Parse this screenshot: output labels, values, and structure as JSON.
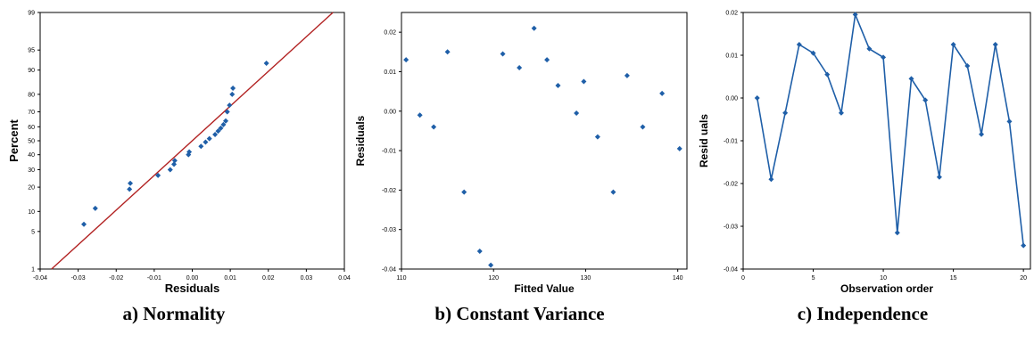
{
  "chart_data": [
    {
      "type": "scatter",
      "panel_id": "normality",
      "caption": "a) Normality",
      "xlabel": "Residuals",
      "ylabel": "Percent",
      "xlim": [
        -0.04,
        0.04
      ],
      "x_ticks": [
        "-0.04",
        "-0.03",
        "-0.02",
        "-0.01",
        "0.00",
        "0.01",
        "0.02",
        "0.03",
        "0.04"
      ],
      "y_ticks": [
        "1",
        "5",
        "10",
        "20",
        "30",
        "40",
        "50",
        "60",
        "70",
        "80",
        "90",
        "95",
        "99"
      ],
      "y_scale": "normal-probability",
      "grid": false,
      "marker_color": "#1f5fa8",
      "line_color": "#b22222",
      "fit_line": {
        "x": [
          -0.037,
          0.037
        ],
        "y": [
          1,
          99
        ]
      },
      "points": [
        {
          "x": -0.0285,
          "y": 6.5
        },
        {
          "x": -0.0255,
          "y": 11
        },
        {
          "x": -0.0165,
          "y": 19
        },
        {
          "x": -0.0163,
          "y": 22
        },
        {
          "x": -0.009,
          "y": 26.5
        },
        {
          "x": -0.0058,
          "y": 30
        },
        {
          "x": -0.0048,
          "y": 33.5
        },
        {
          "x": -0.0046,
          "y": 36
        },
        {
          "x": -0.001,
          "y": 40
        },
        {
          "x": -0.0008,
          "y": 42
        },
        {
          "x": 0.0023,
          "y": 46
        },
        {
          "x": 0.0035,
          "y": 49
        },
        {
          "x": 0.0045,
          "y": 51.5
        },
        {
          "x": 0.006,
          "y": 54.5
        },
        {
          "x": 0.0068,
          "y": 57
        },
        {
          "x": 0.0075,
          "y": 59
        },
        {
          "x": 0.0082,
          "y": 61.5
        },
        {
          "x": 0.0088,
          "y": 64
        },
        {
          "x": 0.0092,
          "y": 70
        },
        {
          "x": 0.0098,
          "y": 74
        },
        {
          "x": 0.0105,
          "y": 80
        },
        {
          "x": 0.0107,
          "y": 83
        },
        {
          "x": 0.0195,
          "y": 92
        }
      ]
    },
    {
      "type": "scatter",
      "panel_id": "constant-variance",
      "caption": "b) Constant Variance",
      "xlabel": "Fitted Value",
      "ylabel": "Residuals",
      "xlim": [
        110,
        141
      ],
      "ylim": [
        -0.04,
        0.025
      ],
      "x_ticks": [
        "110",
        "120",
        "130",
        "140"
      ],
      "x_tick_values": [
        110,
        120,
        130,
        140
      ],
      "y_ticks": [
        "0.02",
        "0.01",
        "0.00",
        "-0.01",
        "-0.02",
        "-0.03",
        "-0.04"
      ],
      "y_tick_values": [
        0.02,
        0.01,
        0.0,
        -0.01,
        -0.02,
        -0.03,
        -0.04
      ],
      "grid": false,
      "marker_color": "#1f5fa8",
      "points": [
        {
          "x": 110.5,
          "y": 0.013
        },
        {
          "x": 112.0,
          "y": -0.001
        },
        {
          "x": 113.5,
          "y": -0.004
        },
        {
          "x": 115.0,
          "y": 0.015
        },
        {
          "x": 116.8,
          "y": -0.0205
        },
        {
          "x": 118.5,
          "y": -0.0355
        },
        {
          "x": 119.7,
          "y": -0.039
        },
        {
          "x": 121.0,
          "y": 0.0145
        },
        {
          "x": 122.8,
          "y": 0.011
        },
        {
          "x": 124.4,
          "y": 0.021
        },
        {
          "x": 125.8,
          "y": 0.013
        },
        {
          "x": 127.0,
          "y": 0.0065
        },
        {
          "x": 129.0,
          "y": -0.0005
        },
        {
          "x": 129.8,
          "y": 0.0075
        },
        {
          "x": 131.3,
          "y": -0.0065
        },
        {
          "x": 133.0,
          "y": -0.0205
        },
        {
          "x": 134.5,
          "y": 0.009
        },
        {
          "x": 136.2,
          "y": -0.004
        },
        {
          "x": 138.3,
          "y": 0.0045
        },
        {
          "x": 140.2,
          "y": -0.0095
        }
      ]
    },
    {
      "type": "line",
      "panel_id": "independence",
      "caption": "c) Independence",
      "xlabel": "Observation order",
      "ylabel": "Resid uals",
      "xlim": [
        0,
        20.5
      ],
      "ylim": [
        -0.04,
        0.02
      ],
      "x_ticks": [
        "0",
        "5",
        "10",
        "15",
        "20"
      ],
      "x_tick_values": [
        0,
        5,
        10,
        15,
        20
      ],
      "y_ticks": [
        "0.02",
        "0.01",
        "0.00",
        "-0.01",
        "-0.02",
        "-0.03",
        "-0.04"
      ],
      "y_tick_values": [
        0.02,
        0.01,
        0.0,
        -0.01,
        -0.02,
        -0.03,
        -0.04
      ],
      "grid": false,
      "marker_color": "#1f5fa8",
      "x": [
        1,
        2,
        3,
        4,
        5,
        6,
        7,
        8,
        9,
        10,
        11,
        12,
        13,
        14,
        15,
        16,
        17,
        18,
        19,
        20
      ],
      "y": [
        0.0,
        -0.019,
        -0.0035,
        0.0125,
        0.0105,
        0.0055,
        -0.0035,
        0.0195,
        0.0115,
        0.0095,
        -0.0315,
        0.0045,
        -0.0005,
        -0.0185,
        0.0125,
        0.0075,
        -0.0085,
        0.0125,
        -0.0055,
        -0.0345
      ]
    }
  ]
}
